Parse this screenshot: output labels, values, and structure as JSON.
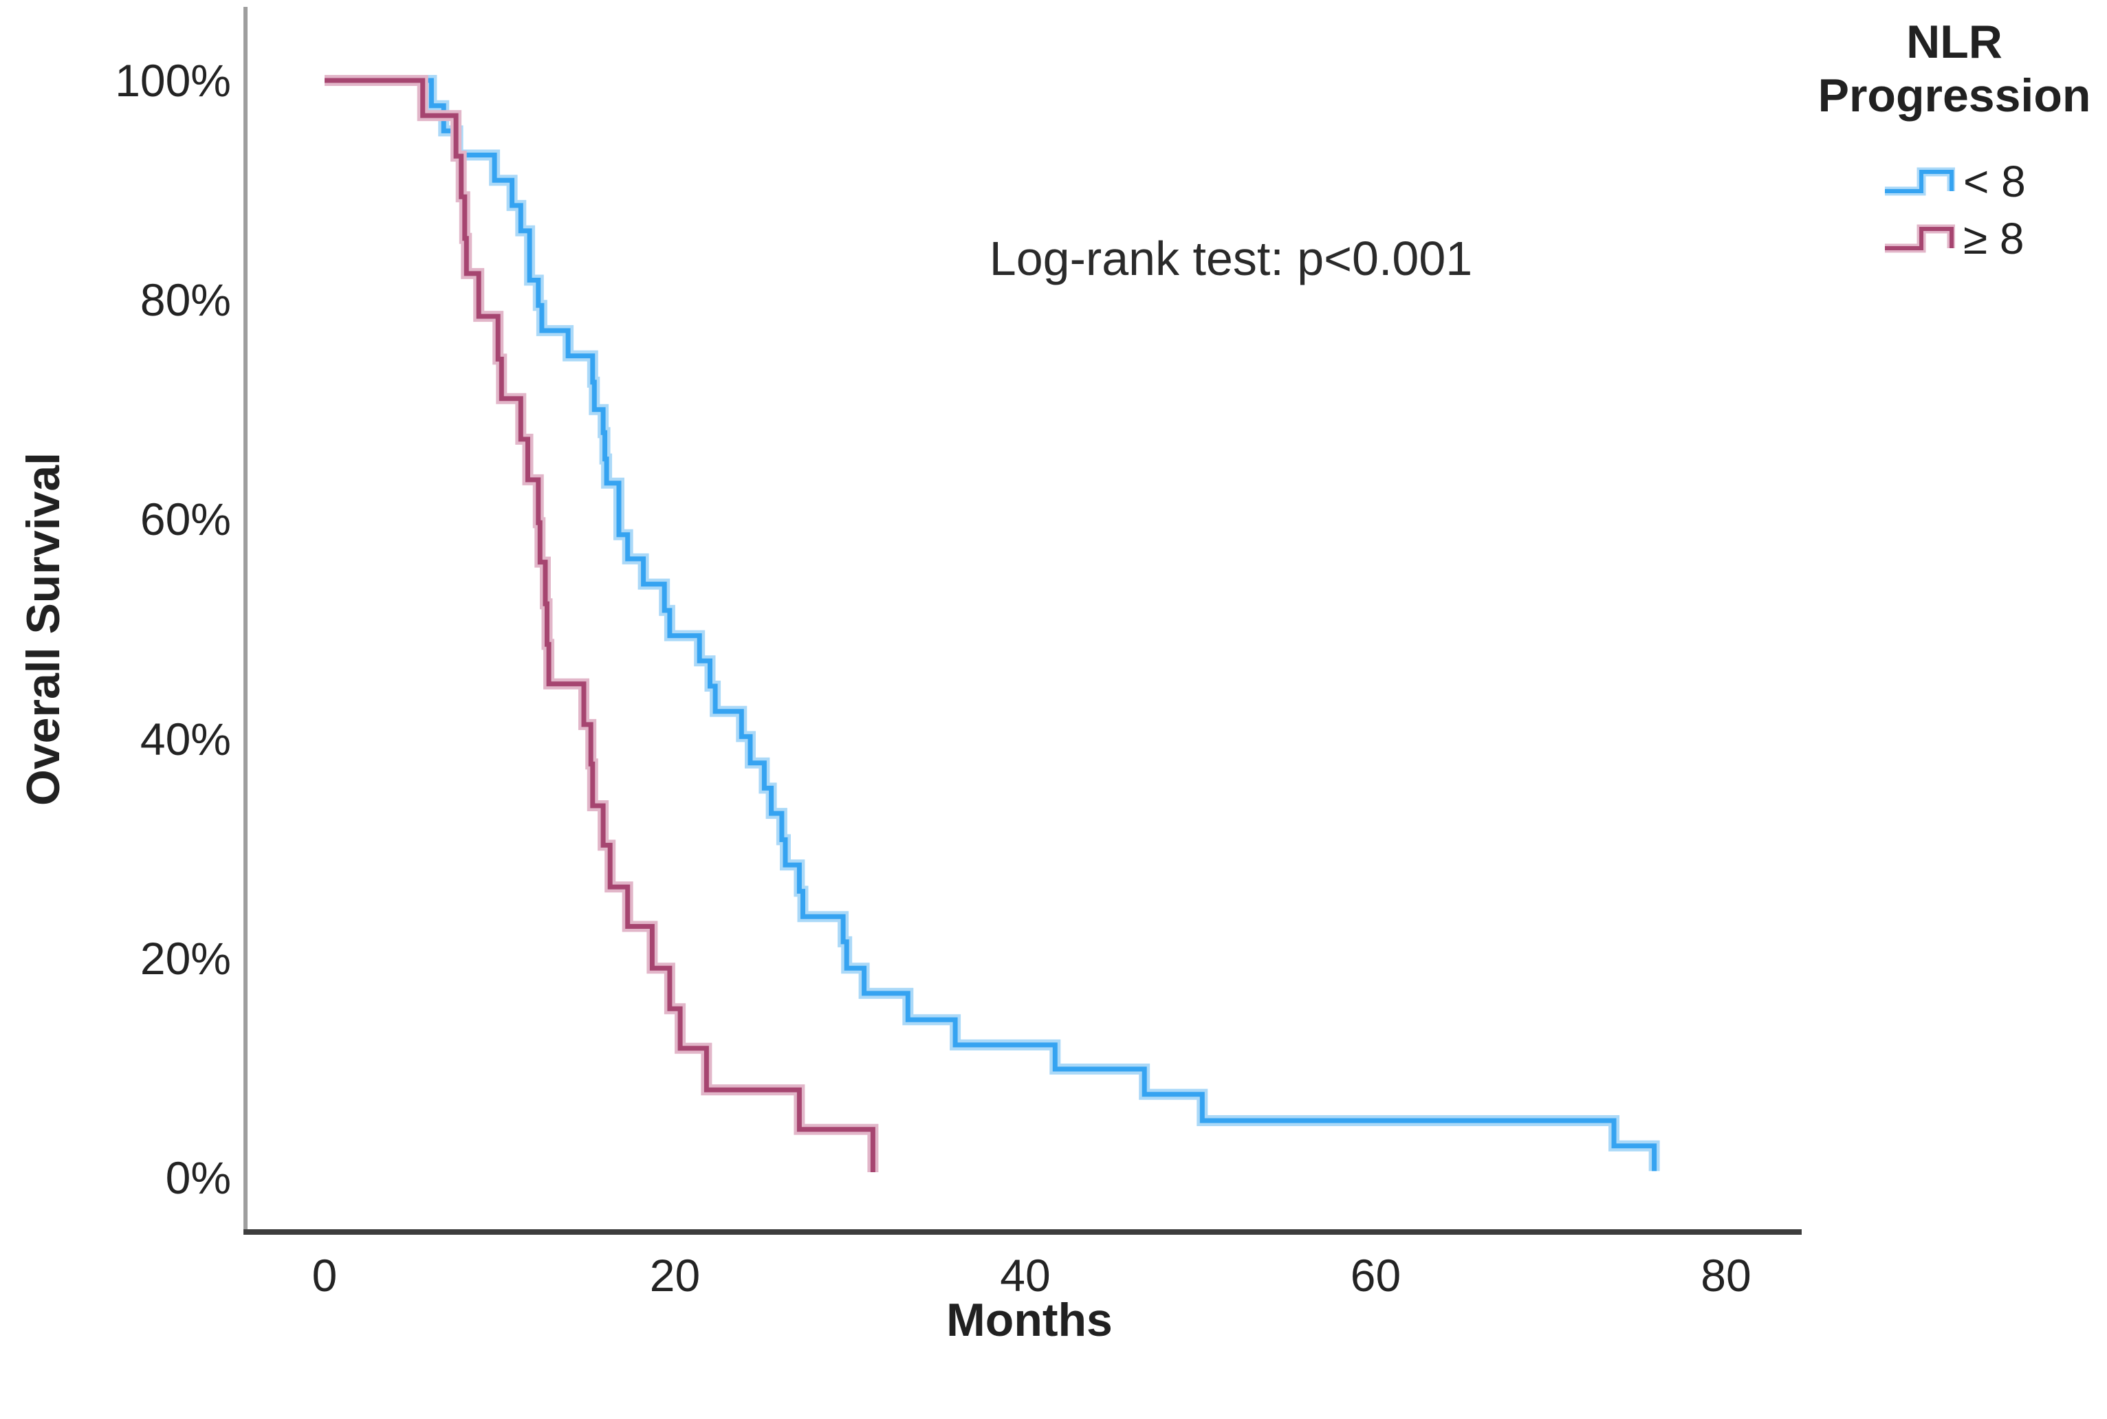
{
  "chart_data": {
    "type": "line",
    "subtype": "kaplan-meier-step-survival",
    "title": "",
    "xlabel": "Months",
    "ylabel": "Overall Survival",
    "annotation": "Log-rank test: p<0.001",
    "grid": false,
    "xlim": [
      -4.5,
      84.3
    ],
    "ylim": [
      -5,
      105
    ],
    "xticks": [
      0,
      20,
      40,
      60,
      80
    ],
    "xtick_labels": [
      "0",
      "20",
      "40",
      "60",
      "80"
    ],
    "yticks": [
      100,
      80,
      60,
      40,
      20,
      0
    ],
    "ytick_labels": [
      "100%",
      "80%",
      "60%",
      "40%",
      "20%",
      "0%"
    ],
    "legend": {
      "title": "NLR Progression",
      "position": "top-right",
      "entries": [
        {
          "label": "< 8",
          "color": "#35A3F1"
        },
        {
          "label": "≥ 8",
          "color": "#A64570"
        }
      ]
    },
    "series": [
      {
        "name": "< 8",
        "color": "#35A3F1",
        "halo": "#ABD9F8",
        "steps": [
          [
            0,
            100
          ],
          [
            6.1,
            97.7
          ],
          [
            6.8,
            95.4
          ],
          [
            7.6,
            93.2
          ],
          [
            9.7,
            90.9
          ],
          [
            10.7,
            88.6
          ],
          [
            11.2,
            86.3
          ],
          [
            11.7,
            81.8
          ],
          [
            12.2,
            79.5
          ],
          [
            12.4,
            77.2
          ],
          [
            13.9,
            74.9
          ],
          [
            15.3,
            72.5
          ],
          [
            15.4,
            70.0
          ],
          [
            15.9,
            67.9
          ],
          [
            16.0,
            65.5
          ],
          [
            16.1,
            63.3
          ],
          [
            16.8,
            58.6
          ],
          [
            17.3,
            56.4
          ],
          [
            18.2,
            54.1
          ],
          [
            19.4,
            51.7
          ],
          [
            19.7,
            49.4
          ],
          [
            21.4,
            47.1
          ],
          [
            22.0,
            44.8
          ],
          [
            22.3,
            42.5
          ],
          [
            23.8,
            40.2
          ],
          [
            24.3,
            37.8
          ],
          [
            25.1,
            35.5
          ],
          [
            25.5,
            33.2
          ],
          [
            26.1,
            30.8
          ],
          [
            26.3,
            28.5
          ],
          [
            27.1,
            26.1
          ],
          [
            27.3,
            23.8
          ],
          [
            29.6,
            21.5
          ],
          [
            29.8,
            19.1
          ],
          [
            30.8,
            16.8
          ],
          [
            33.3,
            14.4
          ],
          [
            36.0,
            12.1
          ],
          [
            41.7,
            9.9
          ],
          [
            46.8,
            7.6
          ],
          [
            50.1,
            5.2
          ],
          [
            73.6,
            2.9
          ],
          [
            75.9,
            0.6
          ]
        ]
      },
      {
        "name": "≥ 8",
        "color": "#A64570",
        "halo": "#E2B6C9",
        "steps": [
          [
            0,
            100
          ],
          [
            5.6,
            96.8
          ],
          [
            7.5,
            93.1
          ],
          [
            7.8,
            89.4
          ],
          [
            8.0,
            85.6
          ],
          [
            8.1,
            82.4
          ],
          [
            8.8,
            78.5
          ],
          [
            9.9,
            74.6
          ],
          [
            10.1,
            71.0
          ],
          [
            11.2,
            67.3
          ],
          [
            11.6,
            63.6
          ],
          [
            12.2,
            59.7
          ],
          [
            12.3,
            56.1
          ],
          [
            12.6,
            52.3
          ],
          [
            12.7,
            48.6
          ],
          [
            12.8,
            45.0
          ],
          [
            14.8,
            41.3
          ],
          [
            15.2,
            37.7
          ],
          [
            15.3,
            33.9
          ],
          [
            15.9,
            30.3
          ],
          [
            16.3,
            26.5
          ],
          [
            17.3,
            22.9
          ],
          [
            18.7,
            19.1
          ],
          [
            19.7,
            15.4
          ],
          [
            20.3,
            11.8
          ],
          [
            21.8,
            8.0
          ],
          [
            27.1,
            4.4
          ],
          [
            31.3,
            0.5
          ]
        ]
      }
    ]
  }
}
